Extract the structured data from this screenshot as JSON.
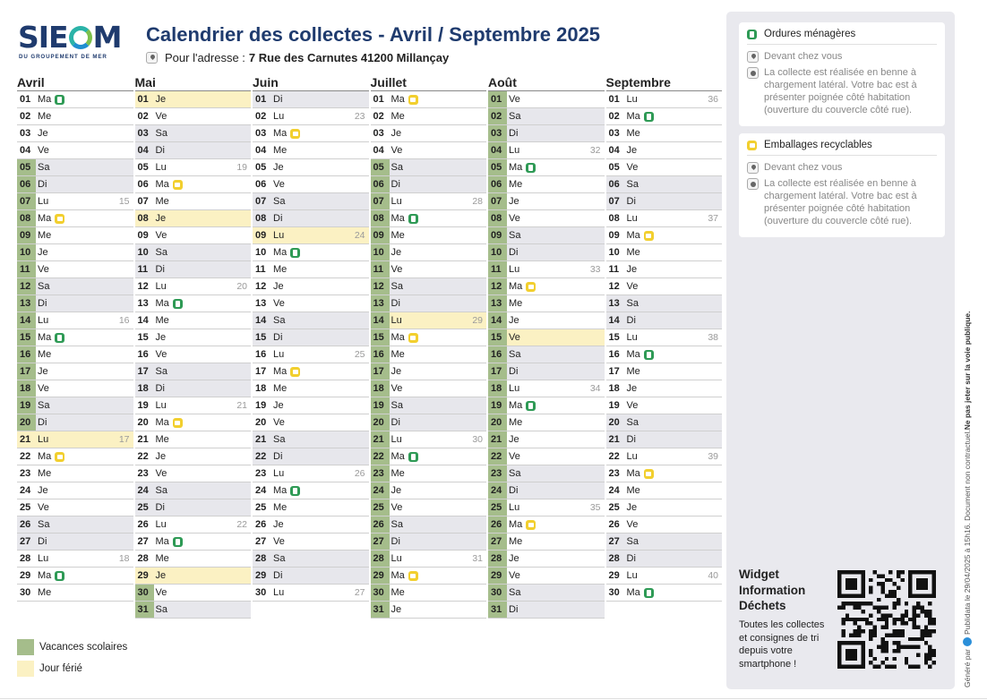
{
  "logo": {
    "text_before": "SIE",
    "text_after": "M",
    "subtitle": "DU GROUPEMENT DE MER"
  },
  "header": {
    "title": "Calendrier des collectes - Avril / Septembre 2025",
    "address_label": "Pour l'adresse :",
    "address_value": "7 Rue des Carnutes 41200 Millançay"
  },
  "calendar": {
    "months": [
      {
        "name": "Avril",
        "days": [
          {
            "n": "01",
            "d": "Ma",
            "c": "om"
          },
          {
            "n": "02",
            "d": "Me"
          },
          {
            "n": "03",
            "d": "Je"
          },
          {
            "n": "04",
            "d": "Ve"
          },
          {
            "n": "05",
            "d": "Sa",
            "w": 1,
            "v": 1
          },
          {
            "n": "06",
            "d": "Di",
            "w": 1,
            "v": 1
          },
          {
            "n": "07",
            "d": "Lu",
            "k": "15",
            "v": 1
          },
          {
            "n": "08",
            "d": "Ma",
            "c": "er",
            "v": 1
          },
          {
            "n": "09",
            "d": "Me",
            "v": 1
          },
          {
            "n": "10",
            "d": "Je",
            "v": 1
          },
          {
            "n": "11",
            "d": "Ve",
            "v": 1
          },
          {
            "n": "12",
            "d": "Sa",
            "w": 1,
            "v": 1
          },
          {
            "n": "13",
            "d": "Di",
            "w": 1,
            "v": 1
          },
          {
            "n": "14",
            "d": "Lu",
            "k": "16",
            "v": 1
          },
          {
            "n": "15",
            "d": "Ma",
            "c": "om",
            "v": 1
          },
          {
            "n": "16",
            "d": "Me",
            "v": 1
          },
          {
            "n": "17",
            "d": "Je",
            "v": 1
          },
          {
            "n": "18",
            "d": "Ve",
            "v": 1
          },
          {
            "n": "19",
            "d": "Sa",
            "w": 1,
            "v": 1
          },
          {
            "n": "20",
            "d": "Di",
            "w": 1,
            "v": 1
          },
          {
            "n": "21",
            "d": "Lu",
            "k": "17",
            "h": 1
          },
          {
            "n": "22",
            "d": "Ma",
            "c": "er"
          },
          {
            "n": "23",
            "d": "Me"
          },
          {
            "n": "24",
            "d": "Je"
          },
          {
            "n": "25",
            "d": "Ve"
          },
          {
            "n": "26",
            "d": "Sa",
            "w": 1
          },
          {
            "n": "27",
            "d": "Di",
            "w": 1
          },
          {
            "n": "28",
            "d": "Lu",
            "k": "18"
          },
          {
            "n": "29",
            "d": "Ma",
            "c": "om"
          },
          {
            "n": "30",
            "d": "Me"
          }
        ]
      },
      {
        "name": "Mai",
        "days": [
          {
            "n": "01",
            "d": "Je",
            "h": 1
          },
          {
            "n": "02",
            "d": "Ve"
          },
          {
            "n": "03",
            "d": "Sa",
            "w": 1
          },
          {
            "n": "04",
            "d": "Di",
            "w": 1
          },
          {
            "n": "05",
            "d": "Lu",
            "k": "19"
          },
          {
            "n": "06",
            "d": "Ma",
            "c": "er"
          },
          {
            "n": "07",
            "d": "Me"
          },
          {
            "n": "08",
            "d": "Je",
            "h": 1
          },
          {
            "n": "09",
            "d": "Ve"
          },
          {
            "n": "10",
            "d": "Sa",
            "w": 1
          },
          {
            "n": "11",
            "d": "Di",
            "w": 1
          },
          {
            "n": "12",
            "d": "Lu",
            "k": "20"
          },
          {
            "n": "13",
            "d": "Ma",
            "c": "om"
          },
          {
            "n": "14",
            "d": "Me"
          },
          {
            "n": "15",
            "d": "Je"
          },
          {
            "n": "16",
            "d": "Ve"
          },
          {
            "n": "17",
            "d": "Sa",
            "w": 1
          },
          {
            "n": "18",
            "d": "Di",
            "w": 1
          },
          {
            "n": "19",
            "d": "Lu",
            "k": "21"
          },
          {
            "n": "20",
            "d": "Ma",
            "c": "er"
          },
          {
            "n": "21",
            "d": "Me"
          },
          {
            "n": "22",
            "d": "Je"
          },
          {
            "n": "23",
            "d": "Ve"
          },
          {
            "n": "24",
            "d": "Sa",
            "w": 1
          },
          {
            "n": "25",
            "d": "Di",
            "w": 1
          },
          {
            "n": "26",
            "d": "Lu",
            "k": "22"
          },
          {
            "n": "27",
            "d": "Ma",
            "c": "om"
          },
          {
            "n": "28",
            "d": "Me"
          },
          {
            "n": "29",
            "d": "Je",
            "h": 1
          },
          {
            "n": "30",
            "d": "Ve",
            "v": 1
          },
          {
            "n": "31",
            "d": "Sa",
            "w": 1,
            "v": 1
          }
        ]
      },
      {
        "name": "Juin",
        "days": [
          {
            "n": "01",
            "d": "Di",
            "w": 1
          },
          {
            "n": "02",
            "d": "Lu",
            "k": "23"
          },
          {
            "n": "03",
            "d": "Ma",
            "c": "er"
          },
          {
            "n": "04",
            "d": "Me"
          },
          {
            "n": "05",
            "d": "Je"
          },
          {
            "n": "06",
            "d": "Ve"
          },
          {
            "n": "07",
            "d": "Sa",
            "w": 1
          },
          {
            "n": "08",
            "d": "Di",
            "w": 1
          },
          {
            "n": "09",
            "d": "Lu",
            "k": "24",
            "h": 1
          },
          {
            "n": "10",
            "d": "Ma",
            "c": "om"
          },
          {
            "n": "11",
            "d": "Me"
          },
          {
            "n": "12",
            "d": "Je"
          },
          {
            "n": "13",
            "d": "Ve"
          },
          {
            "n": "14",
            "d": "Sa",
            "w": 1
          },
          {
            "n": "15",
            "d": "Di",
            "w": 1
          },
          {
            "n": "16",
            "d": "Lu",
            "k": "25"
          },
          {
            "n": "17",
            "d": "Ma",
            "c": "er"
          },
          {
            "n": "18",
            "d": "Me"
          },
          {
            "n": "19",
            "d": "Je"
          },
          {
            "n": "20",
            "d": "Ve"
          },
          {
            "n": "21",
            "d": "Sa",
            "w": 1
          },
          {
            "n": "22",
            "d": "Di",
            "w": 1
          },
          {
            "n": "23",
            "d": "Lu",
            "k": "26"
          },
          {
            "n": "24",
            "d": "Ma",
            "c": "om"
          },
          {
            "n": "25",
            "d": "Me"
          },
          {
            "n": "26",
            "d": "Je"
          },
          {
            "n": "27",
            "d": "Ve"
          },
          {
            "n": "28",
            "d": "Sa",
            "w": 1
          },
          {
            "n": "29",
            "d": "Di",
            "w": 1
          },
          {
            "n": "30",
            "d": "Lu",
            "k": "27"
          }
        ]
      },
      {
        "name": "Juillet",
        "days": [
          {
            "n": "01",
            "d": "Ma",
            "c": "er"
          },
          {
            "n": "02",
            "d": "Me"
          },
          {
            "n": "03",
            "d": "Je"
          },
          {
            "n": "04",
            "d": "Ve"
          },
          {
            "n": "05",
            "d": "Sa",
            "w": 1,
            "v": 1
          },
          {
            "n": "06",
            "d": "Di",
            "w": 1,
            "v": 1
          },
          {
            "n": "07",
            "d": "Lu",
            "k": "28",
            "v": 1
          },
          {
            "n": "08",
            "d": "Ma",
            "c": "om",
            "v": 1
          },
          {
            "n": "09",
            "d": "Me",
            "v": 1
          },
          {
            "n": "10",
            "d": "Je",
            "v": 1
          },
          {
            "n": "11",
            "d": "Ve",
            "v": 1
          },
          {
            "n": "12",
            "d": "Sa",
            "w": 1,
            "v": 1
          },
          {
            "n": "13",
            "d": "Di",
            "w": 1,
            "v": 1
          },
          {
            "n": "14",
            "d": "Lu",
            "k": "29",
            "h": 1,
            "v": 1
          },
          {
            "n": "15",
            "d": "Ma",
            "c": "er",
            "v": 1
          },
          {
            "n": "16",
            "d": "Me",
            "v": 1
          },
          {
            "n": "17",
            "d": "Je",
            "v": 1
          },
          {
            "n": "18",
            "d": "Ve",
            "v": 1
          },
          {
            "n": "19",
            "d": "Sa",
            "w": 1,
            "v": 1
          },
          {
            "n": "20",
            "d": "Di",
            "w": 1,
            "v": 1
          },
          {
            "n": "21",
            "d": "Lu",
            "k": "30",
            "v": 1
          },
          {
            "n": "22",
            "d": "Ma",
            "c": "om",
            "v": 1
          },
          {
            "n": "23",
            "d": "Me",
            "v": 1
          },
          {
            "n": "24",
            "d": "Je",
            "v": 1
          },
          {
            "n": "25",
            "d": "Ve",
            "v": 1
          },
          {
            "n": "26",
            "d": "Sa",
            "w": 1,
            "v": 1
          },
          {
            "n": "27",
            "d": "Di",
            "w": 1,
            "v": 1
          },
          {
            "n": "28",
            "d": "Lu",
            "k": "31",
            "v": 1
          },
          {
            "n": "29",
            "d": "Ma",
            "c": "er",
            "v": 1
          },
          {
            "n": "30",
            "d": "Me",
            "v": 1
          },
          {
            "n": "31",
            "d": "Je",
            "v": 1
          }
        ]
      },
      {
        "name": "Août",
        "days": [
          {
            "n": "01",
            "d": "Ve",
            "v": 1
          },
          {
            "n": "02",
            "d": "Sa",
            "w": 1,
            "v": 1
          },
          {
            "n": "03",
            "d": "Di",
            "w": 1,
            "v": 1
          },
          {
            "n": "04",
            "d": "Lu",
            "k": "32",
            "v": 1
          },
          {
            "n": "05",
            "d": "Ma",
            "c": "om",
            "v": 1
          },
          {
            "n": "06",
            "d": "Me",
            "v": 1
          },
          {
            "n": "07",
            "d": "Je",
            "v": 1
          },
          {
            "n": "08",
            "d": "Ve",
            "v": 1
          },
          {
            "n": "09",
            "d": "Sa",
            "w": 1,
            "v": 1
          },
          {
            "n": "10",
            "d": "Di",
            "w": 1,
            "v": 1
          },
          {
            "n": "11",
            "d": "Lu",
            "k": "33",
            "v": 1
          },
          {
            "n": "12",
            "d": "Ma",
            "c": "er",
            "v": 1
          },
          {
            "n": "13",
            "d": "Me",
            "v": 1
          },
          {
            "n": "14",
            "d": "Je",
            "v": 1
          },
          {
            "n": "15",
            "d": "Ve",
            "h": 1,
            "v": 1
          },
          {
            "n": "16",
            "d": "Sa",
            "w": 1,
            "v": 1
          },
          {
            "n": "17",
            "d": "Di",
            "w": 1,
            "v": 1
          },
          {
            "n": "18",
            "d": "Lu",
            "k": "34",
            "v": 1
          },
          {
            "n": "19",
            "d": "Ma",
            "c": "om",
            "v": 1
          },
          {
            "n": "20",
            "d": "Me",
            "v": 1
          },
          {
            "n": "21",
            "d": "Je",
            "v": 1
          },
          {
            "n": "22",
            "d": "Ve",
            "v": 1
          },
          {
            "n": "23",
            "d": "Sa",
            "w": 1,
            "v": 1
          },
          {
            "n": "24",
            "d": "Di",
            "w": 1,
            "v": 1
          },
          {
            "n": "25",
            "d": "Lu",
            "k": "35",
            "v": 1
          },
          {
            "n": "26",
            "d": "Ma",
            "c": "er",
            "v": 1
          },
          {
            "n": "27",
            "d": "Me",
            "v": 1
          },
          {
            "n": "28",
            "d": "Je",
            "v": 1
          },
          {
            "n": "29",
            "d": "Ve",
            "v": 1
          },
          {
            "n": "30",
            "d": "Sa",
            "w": 1,
            "v": 1
          },
          {
            "n": "31",
            "d": "Di",
            "w": 1,
            "v": 1
          }
        ]
      },
      {
        "name": "Septembre",
        "days": [
          {
            "n": "01",
            "d": "Lu",
            "k": "36"
          },
          {
            "n": "02",
            "d": "Ma",
            "c": "om"
          },
          {
            "n": "03",
            "d": "Me"
          },
          {
            "n": "04",
            "d": "Je"
          },
          {
            "n": "05",
            "d": "Ve"
          },
          {
            "n": "06",
            "d": "Sa",
            "w": 1
          },
          {
            "n": "07",
            "d": "Di",
            "w": 1
          },
          {
            "n": "08",
            "d": "Lu",
            "k": "37"
          },
          {
            "n": "09",
            "d": "Ma",
            "c": "er"
          },
          {
            "n": "10",
            "d": "Me"
          },
          {
            "n": "11",
            "d": "Je"
          },
          {
            "n": "12",
            "d": "Ve"
          },
          {
            "n": "13",
            "d": "Sa",
            "w": 1
          },
          {
            "n": "14",
            "d": "Di",
            "w": 1
          },
          {
            "n": "15",
            "d": "Lu",
            "k": "38"
          },
          {
            "n": "16",
            "d": "Ma",
            "c": "om"
          },
          {
            "n": "17",
            "d": "Me"
          },
          {
            "n": "18",
            "d": "Je"
          },
          {
            "n": "19",
            "d": "Ve"
          },
          {
            "n": "20",
            "d": "Sa",
            "w": 1
          },
          {
            "n": "21",
            "d": "Di",
            "w": 1
          },
          {
            "n": "22",
            "d": "Lu",
            "k": "39"
          },
          {
            "n": "23",
            "d": "Ma",
            "c": "er"
          },
          {
            "n": "24",
            "d": "Me"
          },
          {
            "n": "25",
            "d": "Je"
          },
          {
            "n": "26",
            "d": "Ve"
          },
          {
            "n": "27",
            "d": "Sa",
            "w": 1
          },
          {
            "n": "28",
            "d": "Di",
            "w": 1
          },
          {
            "n": "29",
            "d": "Lu",
            "k": "40"
          },
          {
            "n": "30",
            "d": "Ma",
            "c": "om"
          }
        ]
      }
    ]
  },
  "legend": {
    "vacances": "Vacances scolaires",
    "ferie": "Jour férié"
  },
  "panel": {
    "cards": [
      {
        "title": "Ordures ménagères",
        "location": "Devant chez vous",
        "info": "La collecte est réalisée en benne à chargement latéral. Votre bac est à présenter poignée côté habitation (ouverture du couvercle côté rue)."
      },
      {
        "title": "Emballages recyclables",
        "location": "Devant chez vous",
        "info": "La collecte est réalisée en benne à chargement latéral. Votre bac est à présenter poignée côté habitation (ouverture du couvercle côté rue)."
      }
    ],
    "widget_title": "Widget Information Déchets",
    "widget_desc": "Toutes les collectes et consignes de tri depuis votre smartphone !"
  },
  "footer": {
    "generated_prefix": "Généré par",
    "brand": "Publidata",
    "date_text": "le 29/04/2025 à 15h16. Document non contractuel.",
    "warning": "Ne pas jeter sur la voie publique."
  },
  "colors": {
    "title": "#1f3b6e",
    "vacances": "#a5bd8b",
    "ferie": "#fbf1c3",
    "weekend": "#e7e7ec",
    "om_badge": "#2e9a55",
    "er_badge": "#f2cf2e",
    "panel_bg": "#e9e9ee"
  },
  "icons": {
    "om_badge": "bin-green-icon",
    "er_badge": "bin-yellow-icon",
    "location": "map-pin-icon",
    "info": "clock-icon"
  }
}
